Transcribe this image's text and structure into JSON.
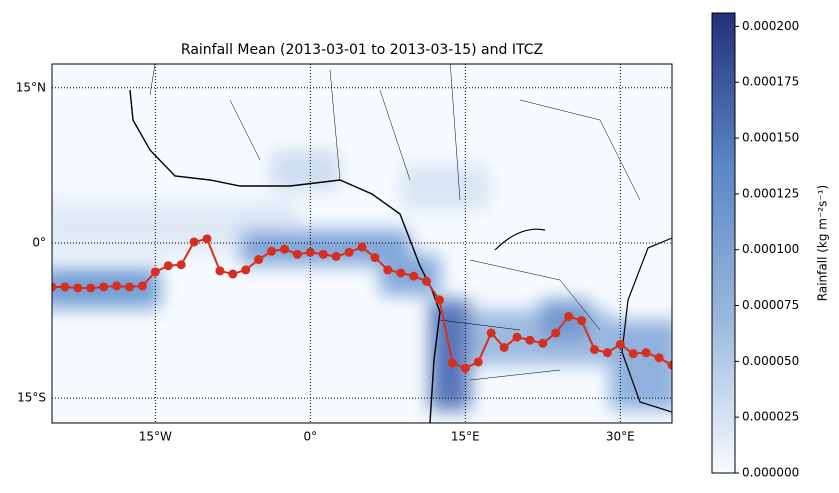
{
  "chart_data": {
    "type": "line",
    "title": "Rainfall Mean (2013-03-01 to 2013-03-15) and ITCZ",
    "x": [
      -25,
      -23.75,
      -22.5,
      -21.25,
      -20,
      -18.75,
      -17.5,
      -16.25,
      -15,
      -13.75,
      -12.5,
      -11.25,
      -10,
      -8.75,
      -7.5,
      -6.25,
      -5,
      -3.75,
      -2.5,
      -1.25,
      0,
      1.25,
      2.5,
      3.75,
      5,
      6.25,
      7.5,
      8.75,
      10,
      11.25,
      12.5,
      13.75,
      15,
      16.25,
      17.5,
      18.75,
      20,
      21.25,
      22.5,
      23.75,
      25,
      26.25,
      27.5,
      28.75,
      30,
      31.25,
      32.5,
      33.75,
      35
    ],
    "values": [
      -4.25,
      -4.25,
      -4.35,
      -4.35,
      -4.25,
      -4.15,
      -4.25,
      -4.15,
      -2.8,
      -2.2,
      -2.1,
      0.1,
      0.4,
      -2.7,
      -3.0,
      -2.6,
      -1.6,
      -0.8,
      -0.6,
      -1.1,
      -0.9,
      -1.1,
      -1.3,
      -0.9,
      -0.4,
      -1.4,
      -2.6,
      -2.9,
      -3.2,
      -3.7,
      -5.5,
      -11.6,
      -12.1,
      -11.5,
      -8.7,
      -10.1,
      -9.1,
      -9.4,
      -9.7,
      -8.7,
      -7.1,
      -7.5,
      -10.3,
      -10.6,
      -9.8,
      -10.7,
      -10.6,
      -11.1,
      -11.8
    ],
    "color": "#d62f1f",
    "xlim": [
      -25,
      35
    ],
    "ylim": [
      -17.4,
      17.3
    ],
    "xticks": [
      {
        "value": -15,
        "label": "15°W"
      },
      {
        "value": 0,
        "label": "0°"
      },
      {
        "value": 15,
        "label": "15°E"
      },
      {
        "value": 30,
        "label": "30°E"
      }
    ],
    "yticks": [
      {
        "value": -15,
        "label": "15°S"
      },
      {
        "value": 0,
        "label": "0°"
      },
      {
        "value": 15,
        "label": "15°N"
      }
    ],
    "grid": true,
    "colorbar": {
      "label": "Rainfall (kg m⁻²s⁻¹)",
      "lim": [
        0,
        0.000206
      ],
      "colors": [
        "#f7fbff",
        "#9ab8dd",
        "#5b87c7",
        "#23307a"
      ],
      "ticks": [
        {
          "value": 0,
          "label": "0.000000"
        },
        {
          "value": 2.5e-05,
          "label": "0.000025"
        },
        {
          "value": 5e-05,
          "label": "0.000050"
        },
        {
          "value": 7.5e-05,
          "label": "0.000075"
        },
        {
          "value": 0.0001,
          "label": "0.000100"
        },
        {
          "value": 0.000125,
          "label": "0.000125"
        },
        {
          "value": 0.00015,
          "label": "0.000150"
        },
        {
          "value": 0.000175,
          "label": "0.000175"
        },
        {
          "value": 0.0002,
          "label": "0.000200"
        }
      ]
    }
  }
}
